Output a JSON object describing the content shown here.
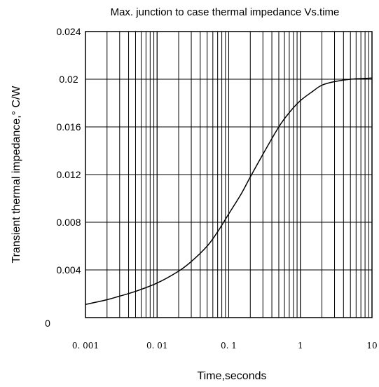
{
  "chart_data": {
    "type": "line",
    "title": "Max. junction to case thermal impedance Vs.time",
    "xlabel": "Time,seconds",
    "ylabel": "Transient thermal impedance,° C/W",
    "xscale": "log",
    "xlim": [
      0.001,
      10
    ],
    "ylim": [
      0,
      0.024
    ],
    "grid": true,
    "x_tick_labels": [
      "0. 001",
      "0. 01",
      "0. 1",
      "1",
      "10"
    ],
    "y_tick_labels": [
      "0",
      "0.004",
      "0.008",
      "0.012",
      "0.016",
      "0.02",
      "0.024"
    ],
    "series": [
      {
        "x": [
          0.001,
          0.002,
          0.003,
          0.005,
          0.01,
          0.02,
          0.03,
          0.05,
          0.07,
          0.1,
          0.15,
          0.2,
          0.3,
          0.5,
          0.7,
          1,
          1.5,
          2,
          3,
          5,
          10
        ],
        "values": [
          0.0011,
          0.0015,
          0.0018,
          0.0022,
          0.0029,
          0.0039,
          0.0047,
          0.006,
          0.0072,
          0.0087,
          0.0104,
          0.0118,
          0.0137,
          0.016,
          0.0172,
          0.0182,
          0.019,
          0.0195,
          0.0198,
          0.02,
          0.0201
        ]
      }
    ]
  }
}
